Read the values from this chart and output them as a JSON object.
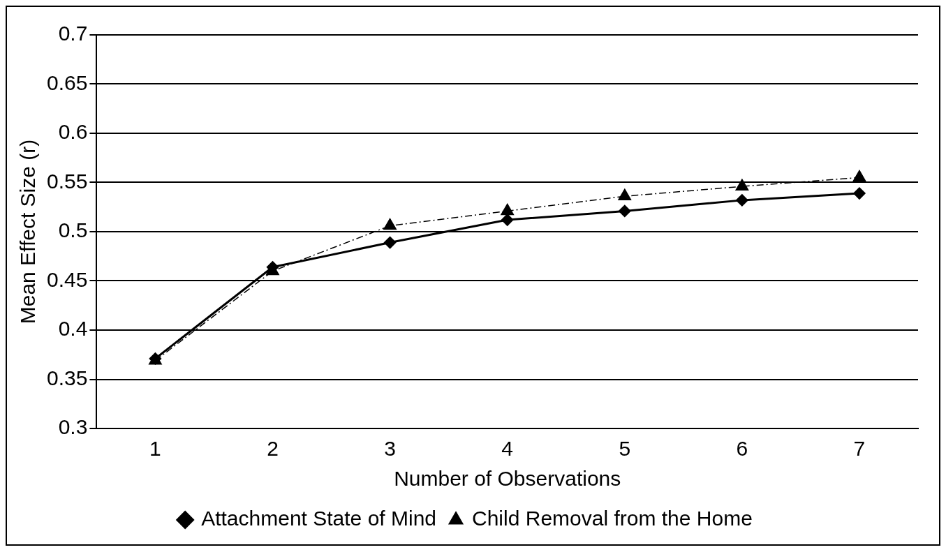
{
  "chart_data": {
    "type": "line",
    "xlabel": "Number of Observations",
    "ylabel": "Mean Effect Size (r)",
    "categories": [
      "1",
      "2",
      "3",
      "4",
      "5",
      "6",
      "7"
    ],
    "series": [
      {
        "name": "Attachment State of Mind",
        "color": "#000000",
        "marker": "diamond",
        "line_style": "solid",
        "values": [
          0.371,
          0.464,
          0.489,
          0.512,
          0.521,
          0.532,
          0.539
        ]
      },
      {
        "name": "Child Removal from the Home",
        "color": "#000000",
        "marker": "triangle",
        "line_style": "dashed",
        "values": [
          0.369,
          0.46,
          0.506,
          0.521,
          0.536,
          0.546,
          0.555
        ]
      }
    ],
    "ylim": [
      0.3,
      0.7
    ],
    "yticks": [
      0.3,
      0.35,
      0.4,
      0.45,
      0.5,
      0.55,
      0.6,
      0.65,
      0.7
    ],
    "grid": "y",
    "legend": "bottom"
  }
}
